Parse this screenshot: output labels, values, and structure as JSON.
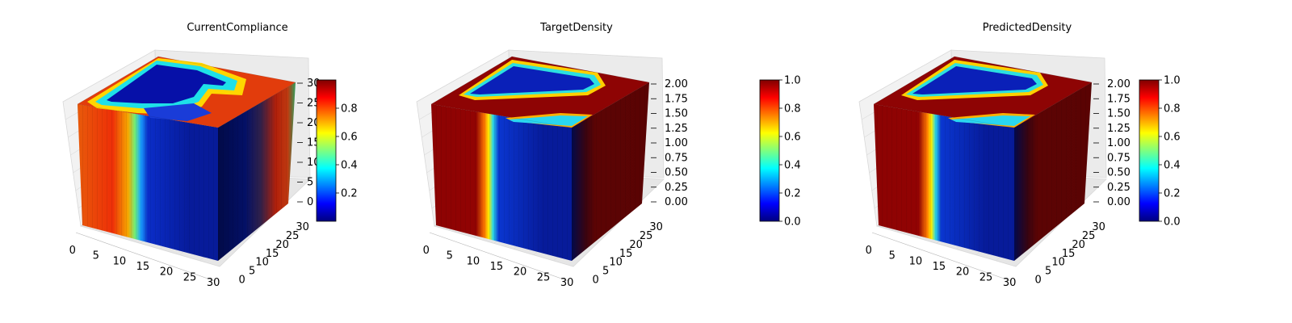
{
  "chart_data": [
    {
      "type": "voxel-3d",
      "title": "CurrentCompliance",
      "xticks": [
        "0",
        "5",
        "10",
        "15",
        "20",
        "25",
        "30"
      ],
      "yticks": [
        "0",
        "5",
        "10",
        "15",
        "20",
        "25",
        "30"
      ],
      "zticks": [
        "0",
        "5",
        "10",
        "15",
        "20",
        "25",
        "30"
      ],
      "xlim": [
        0,
        32
      ],
      "ylim": [
        0,
        32
      ],
      "zlim": [
        0,
        32
      ],
      "colorbar": {
        "ticks": [
          "0.2",
          "0.4",
          "0.6",
          "0.8"
        ],
        "range": [
          0,
          1
        ],
        "colormap": "jet"
      },
      "colormap": "jet"
    },
    {
      "type": "voxel-3d",
      "title": "TargetDensity",
      "xticks": [
        "0",
        "5",
        "10",
        "15",
        "20",
        "25",
        "30"
      ],
      "yticks": [
        "0",
        "5",
        "10",
        "15",
        "20",
        "25",
        "30"
      ],
      "zticks": [
        "0.00",
        "0.25",
        "0.50",
        "0.75",
        "1.00",
        "1.25",
        "1.50",
        "1.75",
        "2.00"
      ],
      "xlim": [
        0,
        32
      ],
      "ylim": [
        0,
        32
      ],
      "zlim": [
        0,
        2
      ],
      "colorbar": {
        "ticks": [
          "0.0",
          "0.2",
          "0.4",
          "0.6",
          "0.8",
          "1.0"
        ],
        "range": [
          0,
          1
        ],
        "colormap": "jet"
      },
      "colormap": "jet"
    },
    {
      "type": "voxel-3d",
      "title": "PredictedDensity",
      "xticks": [
        "0",
        "5",
        "10",
        "15",
        "20",
        "25",
        "30"
      ],
      "yticks": [
        "0",
        "5",
        "10",
        "15",
        "20",
        "25",
        "30"
      ],
      "zticks": [
        "0.00",
        "0.25",
        "0.50",
        "0.75",
        "1.00",
        "1.25",
        "1.50",
        "1.75",
        "2.00"
      ],
      "xlim": [
        0,
        32
      ],
      "ylim": [
        0,
        32
      ],
      "zlim": [
        0,
        2
      ],
      "colorbar": {
        "ticks": [
          "0.0",
          "0.2",
          "0.4",
          "0.6",
          "0.8",
          "1.0"
        ],
        "range": [
          0,
          1
        ],
        "colormap": "jet"
      },
      "colormap": "jet"
    }
  ]
}
